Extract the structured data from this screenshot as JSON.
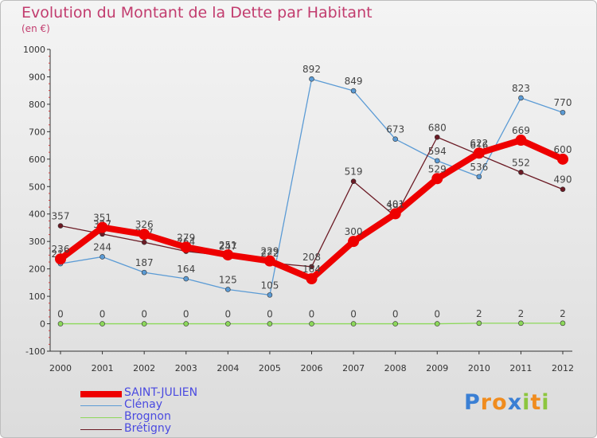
{
  "title": "Evolution du Montant de la Dette par Habitant",
  "subtitle": "(en €)",
  "logo": {
    "text": "Proxiti",
    "letters": [
      "P",
      "r",
      "o",
      "x",
      "i",
      "t",
      "i"
    ],
    "colors": [
      "#3a7fd4",
      "#f08c1e",
      "#f08c1e",
      "#3a7fd4",
      "#8cc63f",
      "#f08c1e",
      "#8cc63f"
    ]
  },
  "chart_data": {
    "type": "line",
    "x": [
      "2000",
      "2001",
      "2002",
      "2003",
      "2004",
      "2005",
      "2006",
      "2007",
      "2008",
      "2009",
      "2010",
      "2011",
      "2012"
    ],
    "ylim": [
      -100,
      1000
    ],
    "yticks": [
      "-100",
      "0",
      "100",
      "200",
      "300",
      "400",
      "500",
      "600",
      "700",
      "800",
      "900",
      "1000"
    ],
    "grid": false,
    "legend_position": "bottom-left",
    "series": [
      {
        "name": "Clénay",
        "color": "#5b9bd5",
        "values": [
          219,
          244,
          187,
          164,
          125,
          105,
          892,
          849,
          673,
          594,
          536,
          823,
          770
        ],
        "labels": [
          "219",
          "244",
          "187",
          "164",
          "125",
          "105",
          "892",
          "849",
          "673",
          "594",
          "536",
          "823",
          "770"
        ]
      },
      {
        "name": "Brognon",
        "color": "#8cd85a",
        "values": [
          0,
          0,
          0,
          0,
          0,
          0,
          0,
          0,
          0,
          0,
          2,
          2,
          2
        ],
        "labels": [
          "0",
          "0",
          "0",
          "0",
          "0",
          "0",
          "0",
          "0",
          "0",
          "0",
          "2",
          "2",
          "2"
        ]
      },
      {
        "name": "Brétigny",
        "color": "#6b1a24",
        "values": [
          357,
          327,
          297,
          264,
          247,
          222,
          208,
          519,
          391,
          680,
          616,
          552,
          490
        ],
        "labels": [
          "357",
          "327",
          "297",
          "264",
          "247",
          "222",
          "208",
          "519",
          "391",
          "680",
          "616",
          "552",
          "490"
        ]
      },
      {
        "name": "SAINT-JULIEN",
        "color": "#ee0000",
        "values": [
          236,
          351,
          326,
          279,
          251,
          229,
          164,
          300,
          401,
          529,
          622,
          669,
          600
        ],
        "labels": [
          "236",
          "351",
          "326",
          "279",
          "251",
          "229",
          "164",
          "300",
          "401",
          "529",
          "622",
          "669",
          "600"
        ]
      }
    ]
  }
}
